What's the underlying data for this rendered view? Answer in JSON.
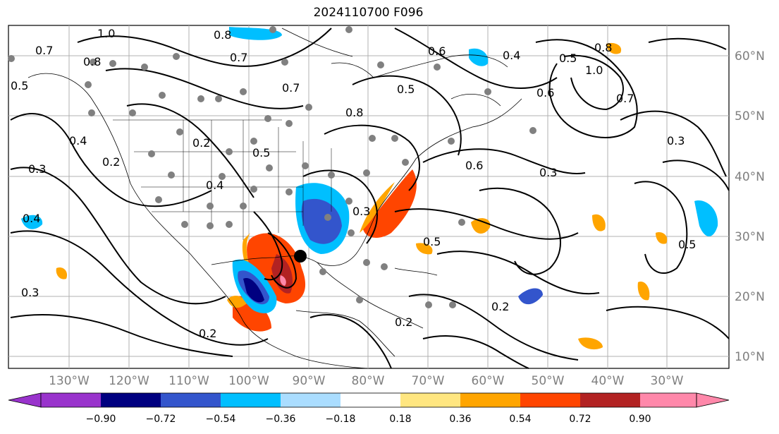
{
  "title": "2024110700 F096",
  "longitude_labels": [
    "130°W",
    "120°W",
    "110°W",
    "100°W",
    "90°W",
    "80°W",
    "70°W",
    "60°W",
    "50°W",
    "40°W",
    "30°W"
  ],
  "latitude_labels": [
    "60°N",
    "50°N",
    "40°N",
    "30°N",
    "20°N",
    "10°N"
  ],
  "colorbar": {
    "tick_labels": [
      "−0.90",
      "−0.72",
      "−0.54",
      "−0.36",
      "−0.18",
      "0.18",
      "0.36",
      "0.54",
      "0.72",
      "0.90"
    ],
    "colors": [
      "#9933cc",
      "#000080",
      "#3355cc",
      "#00bfff",
      "#aaddff",
      "#ffffff",
      "#ffe680",
      "#ffa500",
      "#ff4500",
      "#b22222",
      "#ff88aa"
    ]
  },
  "contour_labels": [
    "1.0",
    "0.8",
    "0.7",
    "0.7",
    "0.8",
    "0.6",
    "0.4",
    "0.5",
    "0.8",
    "1.0",
    "0.7",
    "0.6",
    "0.5",
    "0.5",
    "0.8",
    "0.7",
    "0.2",
    "0.5",
    "0.4",
    "0.3",
    "0.6",
    "0.3",
    "0.2",
    "0.3",
    "0.4",
    "0.5",
    "0.5",
    "0.3",
    "0.2",
    "0.2",
    "0.3",
    "0.4",
    "0.2"
  ]
}
